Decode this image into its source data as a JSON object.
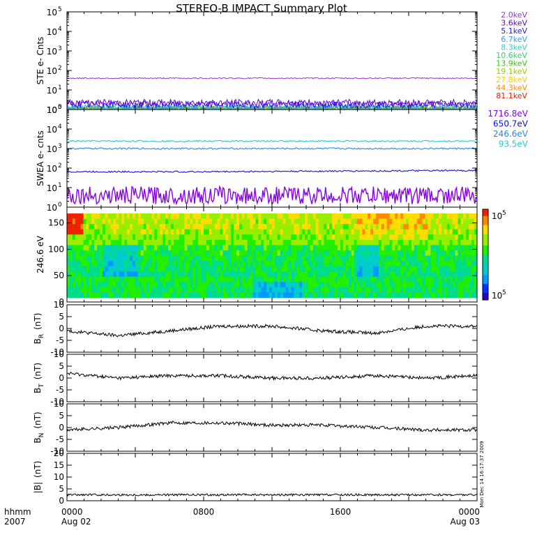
{
  "title": "STEREO-B IMPACT Summary Plot",
  "footer": {
    "time_label": "hhmm",
    "year_label": "2007",
    "x_ticks": [
      "0000",
      "0800",
      "1600",
      "0000"
    ],
    "x_dates": [
      "Aug 02",
      "",
      "",
      "Aug 03"
    ],
    "stamp": "Mon Dec 14 16:17:37 2009"
  },
  "chart_data": [
    {
      "type": "line",
      "ylabel": "STE e- Cnts",
      "yscale": "log",
      "ylim": [
        1,
        100000
      ],
      "y_ticks": [
        "10^0",
        "10^1",
        "10^2",
        "10^3",
        "10^4",
        "10^5"
      ],
      "x": [
        "0000",
        "0800",
        "1600",
        "0000"
      ],
      "series": [
        {
          "name": "2.0keV",
          "color": "#9933cc",
          "values": [
            40,
            40,
            40,
            40
          ]
        },
        {
          "name": "3.6keV",
          "color": "#6600cc",
          "values": [
            2.2,
            2.2,
            2.2,
            2.2
          ]
        },
        {
          "name": "5.1keV",
          "color": "#2222dd",
          "values": [
            1.8,
            1.8,
            1.8,
            1.8
          ]
        },
        {
          "name": "6.7keV",
          "color": "#3399ff",
          "values": [
            1.3,
            1.3,
            1.3,
            1.3
          ]
        },
        {
          "name": "8.3keV",
          "color": "#33cccc",
          "values": [
            1.1,
            1.1,
            1.1,
            1.1
          ]
        },
        {
          "name": "10.6keV",
          "color": "#33cc66",
          "values": [
            1,
            1,
            1,
            1
          ]
        },
        {
          "name": "13.9keV",
          "color": "#33cc00",
          "values": [
            1,
            1,
            1,
            1
          ]
        },
        {
          "name": "19.1keV",
          "color": "#99cc00",
          "values": [
            1,
            1,
            1,
            1
          ]
        },
        {
          "name": "27.8keV",
          "color": "#ffcc00",
          "values": [
            1,
            1,
            1,
            1
          ]
        },
        {
          "name": "44.3keV",
          "color": "#ff8800",
          "values": [
            1,
            1,
            1,
            1
          ]
        },
        {
          "name": "81.1keV",
          "color": "#dd2200",
          "values": [
            1,
            1,
            1,
            1
          ]
        }
      ]
    },
    {
      "type": "line",
      "ylabel": "SWEA e- cnts",
      "yscale": "log",
      "ylim": [
        1,
        100000
      ],
      "y_ticks": [
        "10^0",
        "10^1",
        "10^2",
        "10^3",
        "10^4",
        "10^5"
      ],
      "x": [
        "0000",
        "0800",
        "1600",
        "0000"
      ],
      "series": [
        {
          "name": "1716.8eV",
          "color": "#8800ee",
          "values": [
            4,
            4,
            4,
            4
          ]
        },
        {
          "name": "650.7eV",
          "color": "#1111cc",
          "values": [
            65,
            65,
            70,
            75
          ]
        },
        {
          "name": "246.6eV",
          "color": "#2288ee",
          "values": [
            1000,
            1000,
            1000,
            1000
          ]
        },
        {
          "name": "93.5eV",
          "color": "#22cccc",
          "values": [
            2400,
            2400,
            2400,
            2400
          ]
        }
      ]
    },
    {
      "type": "heatmap",
      "ylabel": "246.6 eV",
      "ylim": [
        0,
        180
      ],
      "y_ticks": [
        "0",
        "50",
        "100",
        "150"
      ],
      "colorbar_ticks": [
        "10^5",
        "10^5"
      ],
      "x": [
        "0000",
        "0800",
        "1600",
        "0000"
      ]
    },
    {
      "type": "line",
      "ylabel": "B_R (nT)",
      "label_main": "B",
      "label_sub": "R",
      "label_unit": "(nT)",
      "ylim": [
        -10,
        10
      ],
      "y_ticks": [
        "-10",
        "-5",
        "0",
        "5",
        "10"
      ],
      "x_hours": [
        0,
        3,
        6,
        9,
        12,
        15,
        18,
        21,
        24
      ],
      "values": [
        -1,
        -3,
        -1,
        1,
        1,
        -1,
        -2,
        1,
        1
      ]
    },
    {
      "type": "line",
      "ylabel": "B_T (nT)",
      "label_main": "B",
      "label_sub": "T",
      "label_unit": "(nT)",
      "ylim": [
        -10,
        10
      ],
      "y_ticks": [
        "-10",
        "-5",
        "0",
        "5",
        "10"
      ],
      "x_hours": [
        0,
        3,
        6,
        9,
        12,
        15,
        18,
        21,
        24
      ],
      "values": [
        2,
        0,
        1,
        1,
        0,
        0,
        1,
        0,
        1
      ]
    },
    {
      "type": "line",
      "ylabel": "B_N (nT)",
      "label_main": "B",
      "label_sub": "N",
      "label_unit": "(nT)",
      "ylim": [
        -10,
        10
      ],
      "y_ticks": [
        "-10",
        "-5",
        "0",
        "5",
        "10"
      ],
      "x_hours": [
        0,
        3,
        6,
        9,
        12,
        15,
        18,
        21,
        24
      ],
      "values": [
        -1,
        0,
        2,
        2,
        1,
        1,
        0,
        -1,
        -1
      ]
    },
    {
      "type": "line",
      "ylabel": "|B| (nT)",
      "label_main": "|B|",
      "label_sub": "",
      "label_unit": "(nT)",
      "ylim": [
        0,
        20
      ],
      "y_ticks": [
        "0",
        "5",
        "10",
        "15",
        "20"
      ],
      "x_hours": [
        0,
        3,
        6,
        9,
        12,
        15,
        18,
        21,
        24
      ],
      "values": [
        2.5,
        2.5,
        2.5,
        2.5,
        2.5,
        2.5,
        2.5,
        2.5,
        2.5
      ]
    }
  ]
}
